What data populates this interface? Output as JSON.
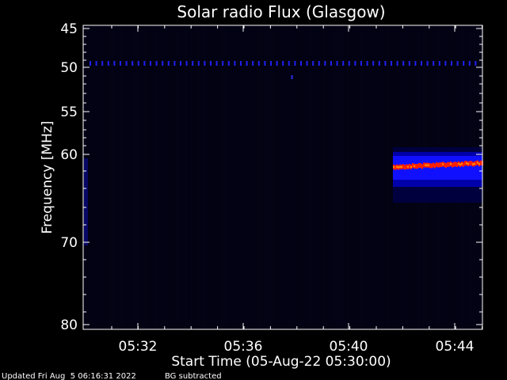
{
  "chart_data": {
    "type": "heatmap",
    "title": "Solar radio Flux (Glasgow)",
    "xlabel": "Start Time (05-Aug-22 05:30:00)",
    "ylabel": "Frequency [MHz]",
    "x_ticks": [
      "05:32",
      "05:36",
      "05:40",
      "05:44"
    ],
    "y_ticks": [
      "45",
      "50",
      "55",
      "60",
      "70",
      "80"
    ],
    "footer_left": "Updated Fri Aug  5 06:16:31 2022",
    "footer_right": "BG subtracted",
    "colors": {
      "background": "#000000",
      "low": "#0a0a2a",
      "mid": "#1010ff",
      "high": "#ff2000",
      "peak": "#ff9000"
    }
  }
}
